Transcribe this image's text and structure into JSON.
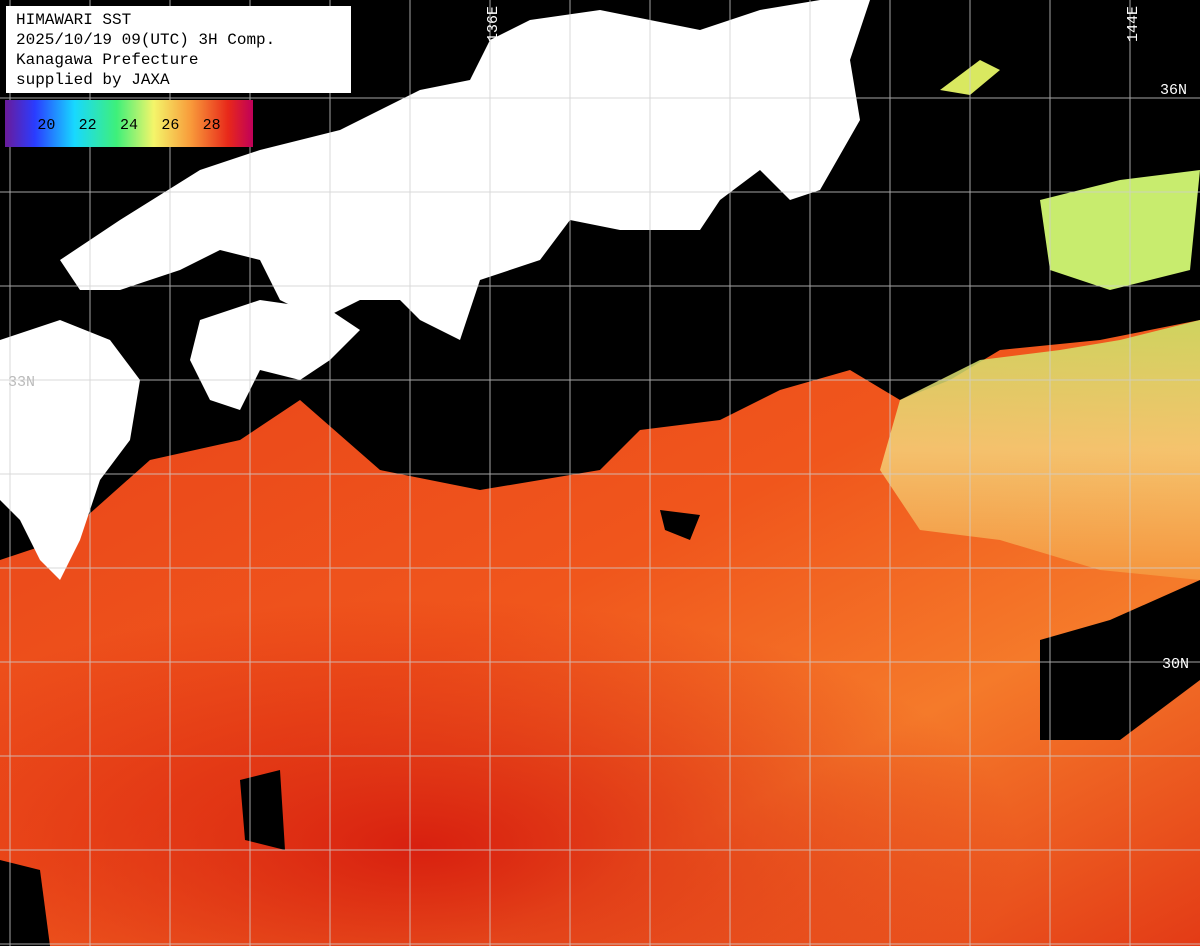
{
  "header": {
    "lines": [
      "HIMAWARI SST",
      "2025/10/19 09(UTC) 3H Comp.",
      "Kanagawa Prefecture",
      "supplied by JAXA"
    ]
  },
  "colorbar": {
    "range": [
      18,
      30
    ],
    "ticks": [
      20,
      22,
      24,
      26,
      28
    ]
  },
  "grid_labels": {
    "longitude": [
      "136E",
      "144E"
    ],
    "latitude": [
      "36N",
      "33N",
      "30N"
    ]
  }
}
